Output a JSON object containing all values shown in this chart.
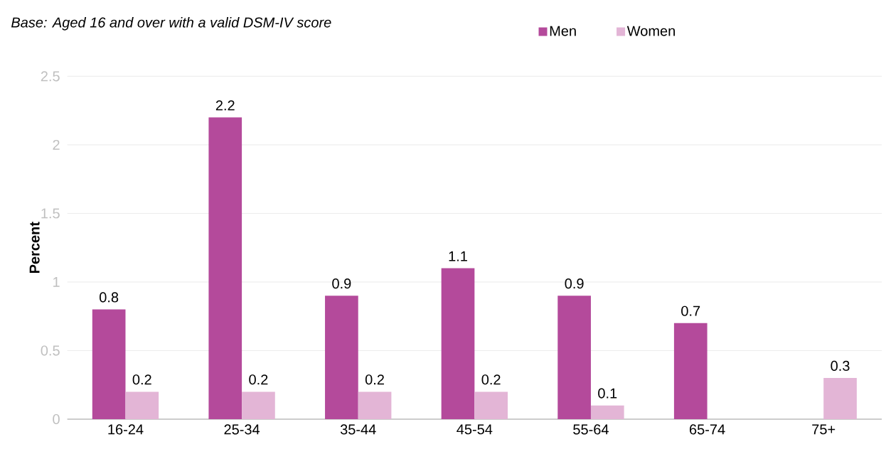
{
  "chart_data": {
    "type": "bar",
    "subtitle": "*Base: Aged 16 and over with a valid DSM-IV score*",
    "ylabel": "Percent",
    "categories": [
      "16-24",
      "25-34",
      "35-44",
      "45-54",
      "55-64",
      "65-74",
      "75+"
    ],
    "series": [
      {
        "name": "Men",
        "color": "#b44a9b",
        "values": [
          0.8,
          2.2,
          0.9,
          1.1,
          0.9,
          0.7,
          null
        ]
      },
      {
        "name": "Women",
        "color": "#e3b5d6",
        "values": [
          0.2,
          0.2,
          0.2,
          0.2,
          0.1,
          null,
          0.3
        ]
      }
    ],
    "ylim": [
      0,
      2.5
    ],
    "yticks": [
      0,
      0.5,
      1,
      1.5,
      2,
      2.5
    ],
    "grid": "y",
    "legend": "top",
    "data_labels": true
  }
}
